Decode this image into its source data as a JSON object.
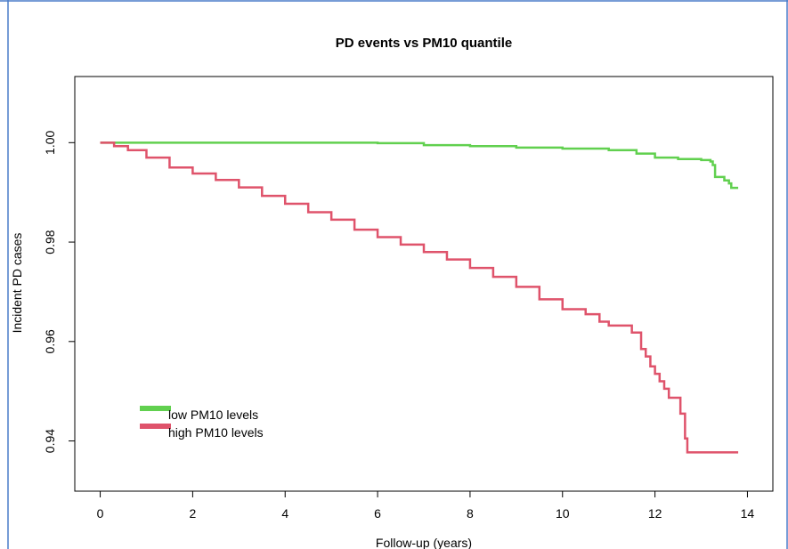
{
  "colors": {
    "frame_blue": "#4a7cc9",
    "low": "#61d04f",
    "high": "#df536b",
    "axis": "#000000"
  },
  "chart_data": {
    "type": "line",
    "title": "PD events vs PM10 quantile",
    "xlabel": "Follow-up (years)",
    "ylabel": "Incident PD cases",
    "xlim": [
      -0.55,
      14.55
    ],
    "ylim": [
      0.9299,
      1.0133
    ],
    "xticks": [
      0,
      2,
      4,
      6,
      8,
      10,
      12,
      14
    ],
    "xtick_labels": [
      "0",
      "2",
      "4",
      "6",
      "8",
      "10",
      "12",
      "14"
    ],
    "yticks": [
      0.94,
      0.96,
      0.98,
      1.0
    ],
    "ytick_labels": [
      "0.94",
      "0.96",
      "0.98",
      "1.00"
    ],
    "grid": false,
    "legend_position": "bottom-left",
    "series": [
      {
        "name": "low PM10 levels",
        "color": "#61d04f",
        "step": true,
        "x": [
          0,
          6.0,
          7.0,
          8.0,
          9.0,
          10.0,
          11.0,
          11.6,
          12.0,
          12.5,
          13.0,
          13.2,
          13.25,
          13.3,
          13.5,
          13.6,
          13.65,
          13.8
        ],
        "y": [
          1.0,
          0.9999,
          0.9995,
          0.9993,
          0.999,
          0.9988,
          0.9985,
          0.9978,
          0.997,
          0.9967,
          0.9965,
          0.9962,
          0.9955,
          0.9931,
          0.9924,
          0.9918,
          0.9909,
          0.9909
        ]
      },
      {
        "name": "high PM10 levels",
        "color": "#df536b",
        "step": true,
        "x": [
          0,
          0.3,
          0.6,
          1.0,
          1.5,
          2.0,
          2.5,
          3.0,
          3.5,
          4.0,
          4.5,
          5.0,
          5.5,
          6.0,
          6.5,
          7.0,
          7.5,
          8.0,
          8.5,
          9.0,
          9.5,
          10.0,
          10.5,
          10.8,
          11.0,
          11.5,
          11.7,
          11.8,
          11.9,
          12.0,
          12.1,
          12.2,
          12.3,
          12.55,
          12.65,
          12.7,
          13.8
        ],
        "y": [
          1.0,
          0.9993,
          0.9985,
          0.997,
          0.995,
          0.9938,
          0.9925,
          0.991,
          0.9893,
          0.9877,
          0.986,
          0.9845,
          0.9825,
          0.981,
          0.9795,
          0.978,
          0.9765,
          0.9748,
          0.973,
          0.971,
          0.9685,
          0.9665,
          0.9655,
          0.964,
          0.9632,
          0.9618,
          0.9585,
          0.957,
          0.955,
          0.9535,
          0.952,
          0.9505,
          0.9487,
          0.9455,
          0.9405,
          0.9377,
          0.9377
        ]
      }
    ]
  }
}
